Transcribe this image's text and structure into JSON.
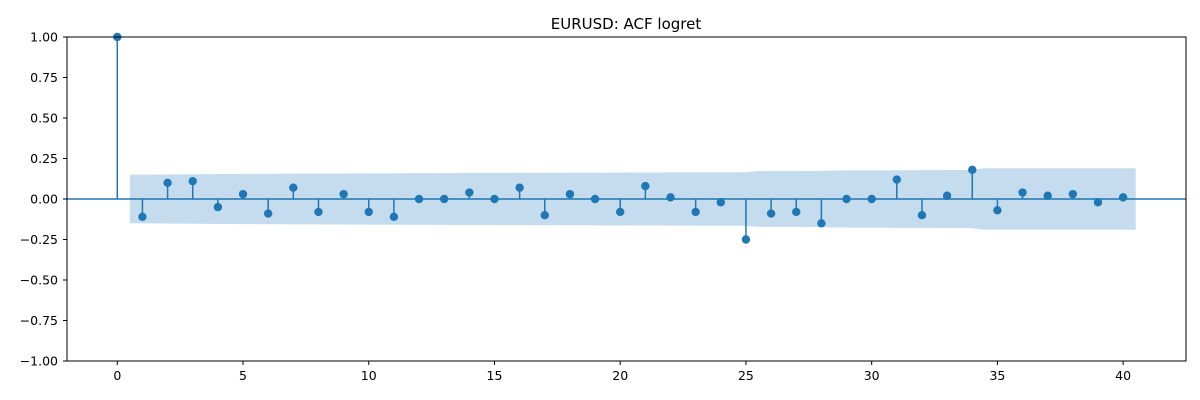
{
  "chart_data": {
    "type": "scatter",
    "title": "EURUSD: ACF logret",
    "xlabel": "",
    "ylabel": "",
    "xlim": [
      -2,
      42.5
    ],
    "ylim": [
      -1.0,
      1.0
    ],
    "x_ticks": [
      0,
      5,
      10,
      15,
      20,
      25,
      30,
      35,
      40
    ],
    "y_ticks": [
      1.0,
      0.75,
      0.5,
      0.25,
      0.0,
      -0.25,
      -0.5,
      -0.75,
      -1.0
    ],
    "x_tick_labels": [
      "0",
      "5",
      "10",
      "15",
      "20",
      "25",
      "30",
      "35",
      "40"
    ],
    "y_tick_labels": [
      "1.00",
      "0.75",
      "0.50",
      "0.25",
      "0.00",
      "−0.25",
      "−0.50",
      "−0.75",
      "−1.00"
    ],
    "grid": false,
    "colors": {
      "series": "#1f77b4",
      "confidence_band": "#c5dcee"
    },
    "series": [
      {
        "lags": [
          0,
          1,
          2,
          3,
          4,
          5,
          6,
          7,
          8,
          9,
          10,
          11,
          12,
          13,
          14,
          15,
          16,
          17,
          18,
          19,
          20,
          21,
          22,
          23,
          24,
          25,
          26,
          27,
          28,
          29,
          30,
          31,
          32,
          33,
          34,
          35,
          36,
          37,
          38,
          39,
          40
        ],
        "values": [
          1.0,
          -0.11,
          0.1,
          0.11,
          -0.05,
          0.03,
          -0.09,
          0.07,
          -0.08,
          0.03,
          -0.08,
          -0.11,
          0.0,
          0.0,
          0.04,
          0.0,
          0.07,
          -0.1,
          0.03,
          0.0,
          -0.08,
          0.08,
          0.01,
          -0.08,
          -0.02,
          -0.25,
          -0.09,
          -0.08,
          -0.15,
          0.0,
          0.0,
          0.12,
          -0.1,
          0.02,
          0.18,
          -0.07,
          0.04,
          0.02,
          0.03,
          -0.02,
          0.01
        ]
      }
    ],
    "confidence_band": {
      "lags": [
        0.5,
        5,
        10,
        15,
        20,
        24.9,
        25.5,
        27.9,
        28.5,
        33.9,
        34.5,
        40.5
      ],
      "upper": [
        0.15,
        0.155,
        0.158,
        0.161,
        0.163,
        0.165,
        0.172,
        0.173,
        0.176,
        0.179,
        0.19,
        0.19
      ]
    }
  }
}
